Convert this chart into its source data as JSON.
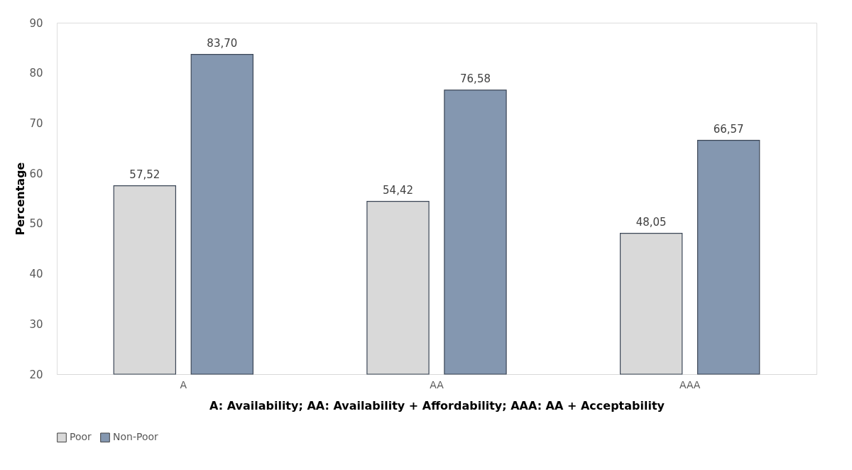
{
  "chart_data": {
    "type": "bar",
    "xlabel": "A: Availability; AA: Availability + Affordability; AAA: AA + Acceptability",
    "ylabel": "Percentage",
    "categories": [
      "A",
      "AA",
      "AAA"
    ],
    "series": [
      {
        "name": "Poor",
        "color": "#d9d9d9",
        "values": [
          57.52,
          54.42,
          48.05
        ],
        "value_labels": [
          "57,52",
          "54,42",
          "48,05"
        ]
      },
      {
        "name": "Non-Poor",
        "color": "#8497b0",
        "values": [
          83.7,
          76.58,
          66.57
        ],
        "value_labels": [
          "83,70",
          "76,58",
          "66,57"
        ]
      }
    ],
    "ylim": [
      20,
      90
    ],
    "yticks": [
      20,
      30,
      40,
      50,
      60,
      70,
      80,
      90
    ],
    "grid": false,
    "legend": "bottom"
  }
}
